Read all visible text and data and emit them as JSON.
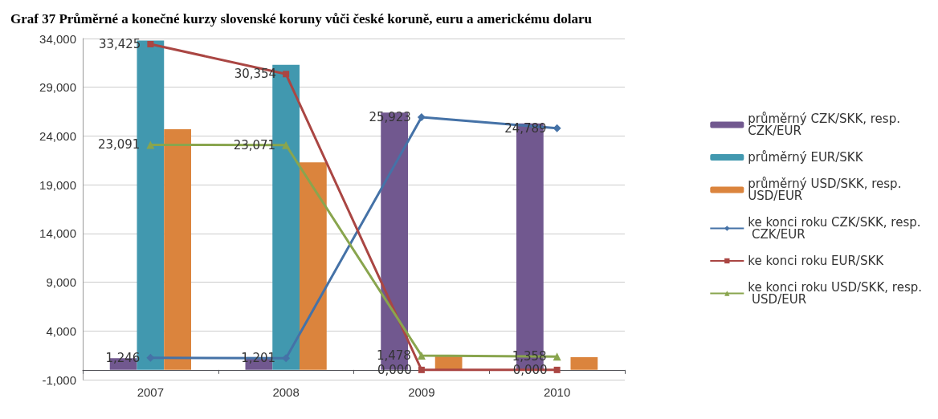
{
  "chart_data": {
    "type": "bar",
    "title": "Graf 37 Průměrné a konečné kurzy slovenské koruny vůči české koruně, euru a americkému dolaru",
    "categories": [
      "2007",
      "2008",
      "2009",
      "2010"
    ],
    "series": [
      {
        "name": "průměrný CZK/SKK, resp. CZK/EUR",
        "color": "#71588f",
        "values": [
          1.2,
          1.2,
          26.4,
          25.3
        ]
      },
      {
        "name": "průměrný EUR/SKK",
        "color": "#4198af",
        "values": [
          33.8,
          31.3,
          null,
          null
        ]
      },
      {
        "name": "průměrný USD/SKK, resp. USD/EUR",
        "color": "#db843d",
        "values": [
          24.7,
          21.3,
          1.4,
          1.3
        ]
      },
      {
        "name": "ke konci roku CZK/SKK, resp. CZK/EUR",
        "type": "line",
        "color": "#4572a7",
        "marker": "diamond",
        "values": [
          1.246,
          1.201,
          25.923,
          24.789
        ],
        "value_labels": [
          "1,246",
          "1,201",
          "25,923",
          "24,789"
        ]
      },
      {
        "name": "ke konci roku EUR/SKK",
        "type": "line",
        "color": "#aa4643",
        "marker": "square",
        "values": [
          33.425,
          30.354,
          0,
          0
        ],
        "value_labels": [
          "33,425",
          "30,354",
          "0,000",
          "0,000"
        ]
      },
      {
        "name": "ke konci roku USD/SKK, resp. USD/EUR",
        "type": "line",
        "color": "#89a54e",
        "marker": "triangle",
        "values": [
          23.091,
          23.071,
          1.478,
          1.358
        ],
        "value_labels": [
          "23,091",
          "23,071",
          "1,478",
          "1,358"
        ]
      }
    ],
    "ylim": [
      -1,
      34
    ],
    "yticks": [
      {
        "value": -1,
        "label": "-1,000"
      },
      {
        "value": 4,
        "label": "4,000"
      },
      {
        "value": 9,
        "label": "9,000"
      },
      {
        "value": 14,
        "label": "14,000"
      },
      {
        "value": 19,
        "label": "19,000"
      },
      {
        "value": 24,
        "label": "24,000"
      },
      {
        "value": 29,
        "label": "29,000"
      },
      {
        "value": 34,
        "label": "34,000"
      }
    ],
    "grid": "y",
    "legend": "right"
  }
}
